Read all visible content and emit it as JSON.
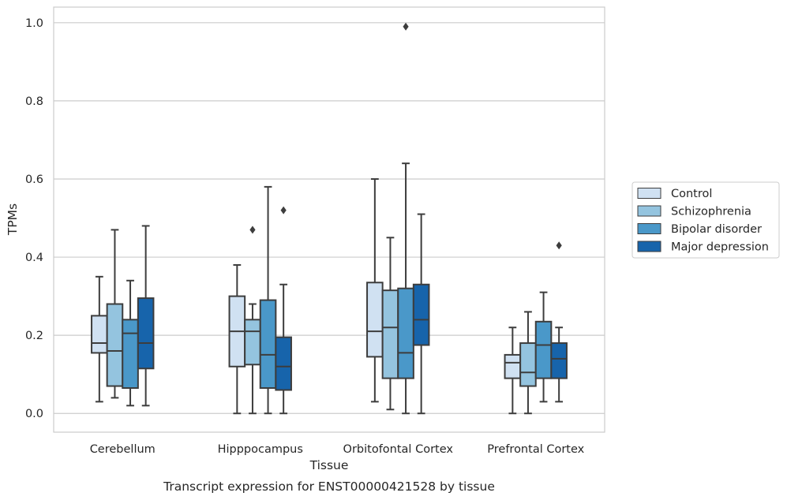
{
  "chart_data": {
    "type": "boxplot",
    "title": "",
    "caption": "Transcript expression for ENST00000421528 by tissue",
    "xlabel": "Tissue",
    "ylabel": "TPMs",
    "ylim": [
      -0.048,
      1.04
    ],
    "yticks": [
      0.0,
      0.2,
      0.4,
      0.6,
      0.8,
      1.0
    ],
    "ytick_labels": [
      "0.0",
      "0.2",
      "0.4",
      "0.6",
      "0.8",
      "1.0"
    ],
    "grid": "horizontal",
    "legend_position": "right",
    "categories": [
      "Cerebellum",
      "Hipppocampus",
      "Orbitofontal Cortex",
      "Prefrontal Cortex"
    ],
    "series": [
      {
        "name": "Control",
        "color": "#d0e1f2",
        "boxes": [
          {
            "whisker_low": 0.03,
            "q1": 0.155,
            "median": 0.18,
            "q3": 0.25,
            "whisker_high": 0.35,
            "outliers": []
          },
          {
            "whisker_low": 0.0,
            "q1": 0.12,
            "median": 0.21,
            "q3": 0.3,
            "whisker_high": 0.38,
            "outliers": []
          },
          {
            "whisker_low": 0.03,
            "q1": 0.145,
            "median": 0.21,
            "q3": 0.335,
            "whisker_high": 0.6,
            "outliers": []
          },
          {
            "whisker_low": 0.0,
            "q1": 0.09,
            "median": 0.13,
            "q3": 0.15,
            "whisker_high": 0.22,
            "outliers": []
          }
        ]
      },
      {
        "name": "Schizophrenia",
        "color": "#94c4df",
        "boxes": [
          {
            "whisker_low": 0.04,
            "q1": 0.07,
            "median": 0.16,
            "q3": 0.28,
            "whisker_high": 0.47,
            "outliers": []
          },
          {
            "whisker_low": 0.0,
            "q1": 0.125,
            "median": 0.21,
            "q3": 0.24,
            "whisker_high": 0.28,
            "outliers": [
              0.47
            ]
          },
          {
            "whisker_low": 0.01,
            "q1": 0.09,
            "median": 0.22,
            "q3": 0.315,
            "whisker_high": 0.45,
            "outliers": []
          },
          {
            "whisker_low": 0.0,
            "q1": 0.07,
            "median": 0.105,
            "q3": 0.18,
            "whisker_high": 0.26,
            "outliers": []
          }
        ]
      },
      {
        "name": "Bipolar disorder",
        "color": "#4a98c9",
        "boxes": [
          {
            "whisker_low": 0.02,
            "q1": 0.065,
            "median": 0.205,
            "q3": 0.24,
            "whisker_high": 0.34,
            "outliers": []
          },
          {
            "whisker_low": 0.0,
            "q1": 0.065,
            "median": 0.15,
            "q3": 0.29,
            "whisker_high": 0.58,
            "outliers": []
          },
          {
            "whisker_low": 0.0,
            "q1": 0.09,
            "median": 0.155,
            "q3": 0.32,
            "whisker_high": 0.64,
            "outliers": [
              0.99
            ]
          },
          {
            "whisker_low": 0.03,
            "q1": 0.09,
            "median": 0.175,
            "q3": 0.235,
            "whisker_high": 0.31,
            "outliers": []
          }
        ]
      },
      {
        "name": "Major depression",
        "color": "#1764ab",
        "boxes": [
          {
            "whisker_low": 0.02,
            "q1": 0.115,
            "median": 0.18,
            "q3": 0.295,
            "whisker_high": 0.48,
            "outliers": []
          },
          {
            "whisker_low": 0.0,
            "q1": 0.06,
            "median": 0.12,
            "q3": 0.195,
            "whisker_high": 0.33,
            "outliers": [
              0.52
            ]
          },
          {
            "whisker_low": 0.0,
            "q1": 0.175,
            "median": 0.24,
            "q3": 0.33,
            "whisker_high": 0.51,
            "outliers": []
          },
          {
            "whisker_low": 0.03,
            "q1": 0.09,
            "median": 0.14,
            "q3": 0.18,
            "whisker_high": 0.22,
            "outliers": [
              0.43
            ]
          }
        ]
      }
    ]
  }
}
